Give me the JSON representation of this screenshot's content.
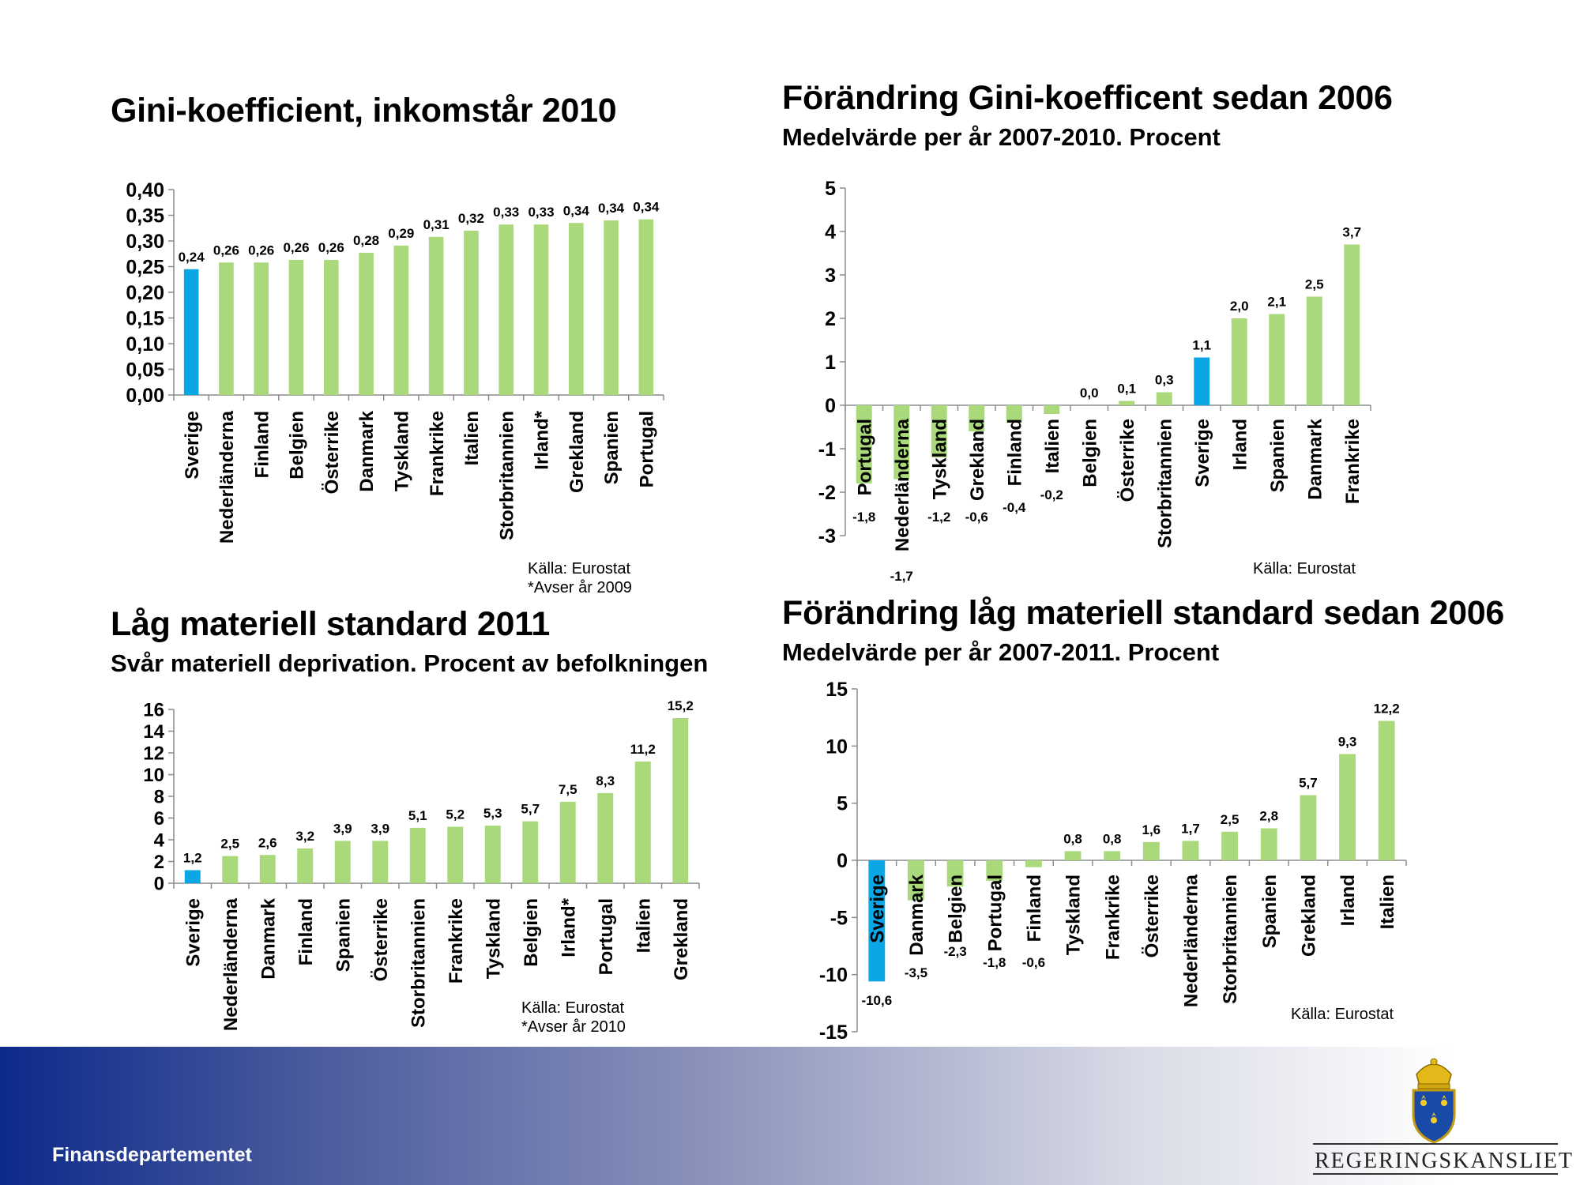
{
  "colors": {
    "bar_default": "#a9d97b",
    "bar_highlight": "#0aa6e6",
    "footer_start": "#0c2a8a"
  },
  "footer": {
    "department": "Finansdepartementet",
    "logo_text": "REGERINGSKANSLIET"
  },
  "chart_data": [
    {
      "id": "gini2010",
      "type": "bar",
      "title": "Gini-koefficient, inkomstår 2010",
      "subtitle": "",
      "categories": [
        "Sverige",
        "Nederländerna",
        "Finland",
        "Belgien",
        "Österrike",
        "Danmark",
        "Tyskland",
        "Frankrike",
        "Italien",
        "Storbritannien",
        "Irland*",
        "Grekland",
        "Spanien",
        "Portugal"
      ],
      "values": [
        0.24,
        0.26,
        0.26,
        0.26,
        0.26,
        0.28,
        0.29,
        0.31,
        0.32,
        0.33,
        0.33,
        0.34,
        0.34,
        0.34
      ],
      "heights": [
        0.245,
        0.258,
        0.258,
        0.263,
        0.263,
        0.277,
        0.291,
        0.308,
        0.32,
        0.332,
        0.332,
        0.335,
        0.34,
        0.342
      ],
      "labels": [
        "0,24",
        "0,26",
        "0,26",
        "0,26",
        "0,26",
        "0,28",
        "0,29",
        "0,31",
        "0,32",
        "0,33",
        "0,33",
        "0,34",
        "0,34",
        "0,34"
      ],
      "highlight": [
        "Sverige"
      ],
      "yticks": [
        "0,00",
        "0,05",
        "0,10",
        "0,15",
        "0,20",
        "0,25",
        "0,30",
        "0,35",
        "0,40"
      ],
      "ylim": [
        0,
        0.4
      ],
      "sources": [
        "Källa: Eurostat",
        "*Avser år 2009"
      ]
    },
    {
      "id": "gini_change",
      "type": "bar",
      "title": "Förändring Gini-koefficent sedan 2006",
      "subtitle": "Medelvärde per år 2007-2010. Procent",
      "categories": [
        "Portugal",
        "Nederländerna",
        "Tyskland",
        "Grekland",
        "Finland",
        "Italien",
        "Belgien",
        "Österrike",
        "Storbritannien",
        "Sverige",
        "Irland",
        "Spanien",
        "Danmark",
        "Frankrike"
      ],
      "values": [
        -1.8,
        -1.7,
        -1.2,
        -0.6,
        -0.4,
        -0.2,
        0.0,
        0.1,
        0.3,
        1.1,
        2.0,
        2.1,
        2.5,
        3.7
      ],
      "labels": [
        "-1,8",
        "-1,7",
        "-1,2",
        "-0,6",
        "-0,4",
        "-0,2",
        "0,0",
        "0,1",
        "0,3",
        "1,1",
        "2,0",
        "2,1",
        "2,5",
        "3,7"
      ],
      "highlight": [
        "Sverige"
      ],
      "yticks": [
        "-3",
        "-2",
        "-1",
        "0",
        "1",
        "2",
        "3",
        "4",
        "5"
      ],
      "ylim": [
        -3,
        5
      ],
      "sources": [
        "Källa: Eurostat"
      ]
    },
    {
      "id": "material2011",
      "type": "bar",
      "title": "Låg materiell standard 2011",
      "subtitle": "Svår materiell deprivation. Procent av befolkningen",
      "categories": [
        "Sverige",
        "Nederländerna",
        "Danmark",
        "Finland",
        "Spanien",
        "Österrike",
        "Storbritannien",
        "Frankrike",
        "Tyskland",
        "Belgien",
        "Irland*",
        "Portugal",
        "Italien",
        "Grekland"
      ],
      "values": [
        1.2,
        2.5,
        2.6,
        3.2,
        3.9,
        3.9,
        5.1,
        5.2,
        5.3,
        5.7,
        7.5,
        8.3,
        11.2,
        15.2
      ],
      "labels": [
        "1,2",
        "2,5",
        "2,6",
        "3,2",
        "3,9",
        "3,9",
        "5,1",
        "5,2",
        "5,3",
        "5,7",
        "7,5",
        "8,3",
        "11,2",
        "15,2"
      ],
      "highlight": [
        "Sverige"
      ],
      "yticks": [
        "0",
        "2",
        "4",
        "6",
        "8",
        "10",
        "12",
        "14",
        "16"
      ],
      "ylim": [
        0,
        16
      ],
      "sources": [
        "Källa: Eurostat",
        "*Avser år 2010"
      ]
    },
    {
      "id": "material_change",
      "type": "bar",
      "title": "Förändring låg materiell standard sedan 2006",
      "subtitle": "Medelvärde per år 2007-2011. Procent",
      "categories": [
        "Sverige",
        "Danmark",
        "Belgien",
        "Portugal",
        "Finland",
        "Tyskland",
        "Frankrike",
        "Österrike",
        "Nederländerna",
        "Storbritannien",
        "Spanien",
        "Grekland",
        "Irland",
        "Italien"
      ],
      "values": [
        -10.6,
        -3.5,
        -2.3,
        -1.8,
        -0.6,
        0.8,
        0.8,
        1.6,
        1.7,
        2.5,
        2.8,
        5.7,
        9.3,
        12.2
      ],
      "labels": [
        "-10,6",
        "-3,5",
        "-2,3",
        "-1,8",
        "-0,6",
        "0,8",
        "0,8",
        "1,6",
        "1,7",
        "2,5",
        "2,8",
        "5,7",
        "9,3",
        "12,2"
      ],
      "highlight": [
        "Sverige"
      ],
      "yticks": [
        "-15",
        "-10",
        "-5",
        "0",
        "5",
        "10",
        "15"
      ],
      "ylim": [
        -15,
        15
      ],
      "sources": [
        "Källa: Eurostat"
      ]
    }
  ]
}
